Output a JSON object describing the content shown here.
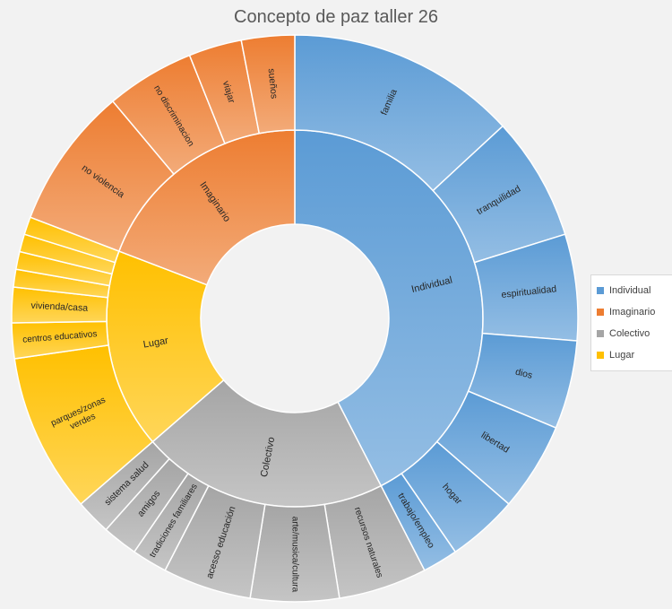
{
  "chart_data": {
    "type": "sunburst",
    "title": "Concepto de paz taller 26",
    "legend_position": "right",
    "categories": [
      {
        "name": "Individual",
        "color": "#5B9BD5",
        "children": [
          {
            "name": "familia",
            "value": 13
          },
          {
            "name": "tranquilidad",
            "value": 7
          },
          {
            "name": "espiritualidad",
            "value": 6
          },
          {
            "name": "dios",
            "value": 5
          },
          {
            "name": "libertad",
            "value": 5
          },
          {
            "name": "hogar",
            "value": 4
          },
          {
            "name": "trabajo/empleo",
            "value": 2
          }
        ]
      },
      {
        "name": "Colectivo",
        "color": "#A5A5A5",
        "children": [
          {
            "name": "recursos naturales",
            "value": 5
          },
          {
            "name": "arte/musica/cultura",
            "value": 5
          },
          {
            "name": "acesso educación",
            "value": 5
          },
          {
            "name": "tradiciones familiares",
            "value": 2
          },
          {
            "name": "amigos",
            "value": 2
          },
          {
            "name": "sistema salud",
            "value": 2
          }
        ]
      },
      {
        "name": "Lugar",
        "color": "#FFC000",
        "children": [
          {
            "name": "parques/zonas verdes",
            "value": 9
          },
          {
            "name": "centros educativos",
            "value": 2
          },
          {
            "name": "vivienda/casa",
            "value": 2
          },
          {
            "name": "",
            "value": 1
          },
          {
            "name": "",
            "value": 1
          },
          {
            "name": "",
            "value": 1
          },
          {
            "name": "",
            "value": 1
          }
        ]
      },
      {
        "name": "Imaginario",
        "color": "#ED7D31",
        "children": [
          {
            "name": "no violencia",
            "value": 8
          },
          {
            "name": "no discriminacion",
            "value": 5
          },
          {
            "name": "viajar",
            "value": 3
          },
          {
            "name": "sueños",
            "value": 3
          }
        ]
      }
    ],
    "legend": [
      "Individual",
      "Imaginario",
      "Colectivo",
      "Lugar"
    ]
  }
}
